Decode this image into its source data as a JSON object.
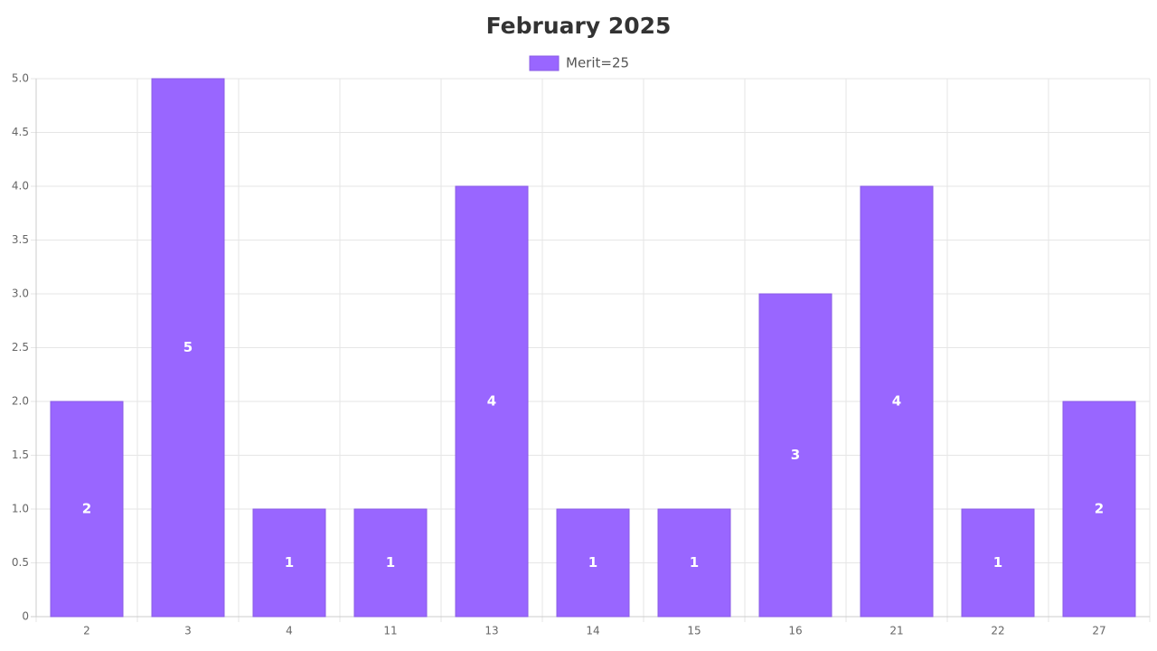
{
  "chart_data": {
    "type": "bar",
    "title": "February 2025",
    "series": [
      {
        "name": "Merit=25",
        "color": "#9966ff",
        "values": [
          2,
          5,
          1,
          1,
          4,
          1,
          1,
          3,
          4,
          1,
          2
        ]
      }
    ],
    "categories": [
      "2",
      "3",
      "4",
      "11",
      "13",
      "14",
      "15",
      "16",
      "21",
      "22",
      "27"
    ],
    "ylim": [
      0,
      5
    ],
    "yticks": [
      0,
      0.5,
      {
        "value": 1,
        "label": "1.0"
      },
      1.5,
      {
        "value": 2,
        "label": "2.0"
      },
      2.5,
      {
        "value": 3,
        "label": "3.0"
      },
      3.5,
      {
        "value": 4,
        "label": "4.0"
      },
      4.5,
      {
        "value": 5,
        "label": "5.0"
      }
    ],
    "grid": true,
    "legend": "top"
  }
}
